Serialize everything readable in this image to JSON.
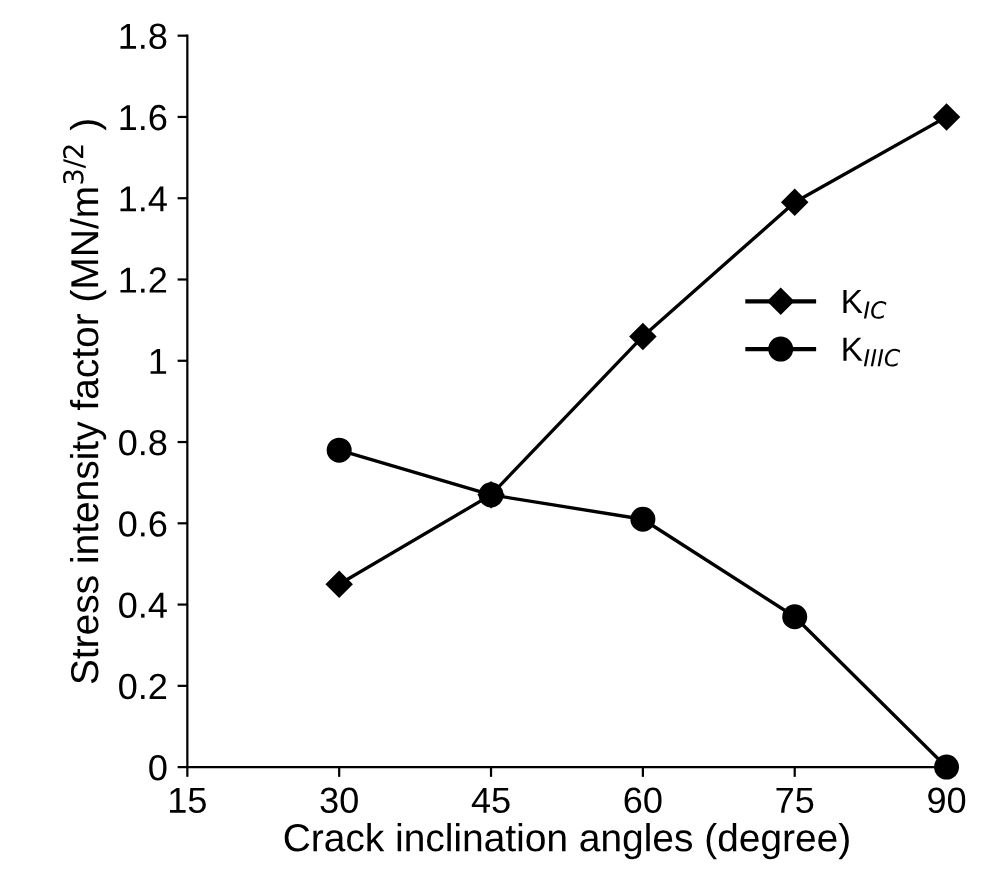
{
  "chart_data": {
    "type": "line",
    "xlabel": "Crack inclination angles (degree)",
    "ylabel": "Stress intensity factor (MN/m$^{3/2}$ )",
    "x": [
      30,
      45,
      60,
      75,
      90
    ],
    "series": [
      {
        "name": "K$_{IC}$",
        "color": "#000000",
        "marker": "diamond",
        "values": [
          0.45,
          0.67,
          1.06,
          1.39,
          1.6
        ]
      },
      {
        "name": "K$_{IIIC}$",
        "color": "#000000",
        "marker": "circle",
        "values": [
          0.78,
          0.67,
          0.61,
          0.37,
          0
        ]
      }
    ],
    "xlim": [
      15,
      90
    ],
    "xticks": [
      15,
      30,
      45,
      60,
      75,
      90
    ],
    "ylim": [
      0,
      1.8
    ],
    "yticks": [
      0,
      0.2,
      0.4,
      0.6,
      0.8,
      1,
      1.2,
      1.4,
      1.6,
      1.8
    ],
    "grid": false,
    "legend": "right",
    "line_style": "solid"
  }
}
